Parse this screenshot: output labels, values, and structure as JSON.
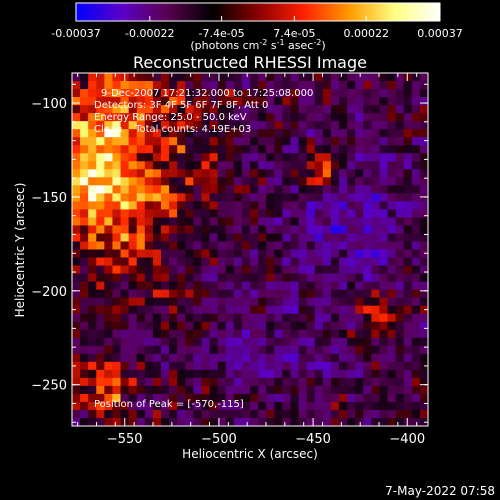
{
  "colorbar": {
    "ticks": [
      "-0.00037",
      "-0.00022",
      "-7.4e-05",
      "7.4e-05",
      "0.00022",
      "0.00037"
    ],
    "tick_values": [
      -0.00037,
      -0.00022,
      -7.4e-05,
      7.4e-05,
      0.00022,
      0.00037
    ],
    "range": [
      -0.00037,
      0.00037
    ],
    "units_main": "(photons cm",
    "units_sup1": "-2",
    "units_mid": " s",
    "units_sup2": "-1",
    "units_end": " asec",
    "units_sup3": "-2",
    "units_close": ")",
    "colors": [
      "#0000ff",
      "#5a00c8",
      "#5a0050",
      "#000000",
      "#8a0000",
      "#ff2000",
      "#ff9a00",
      "#ffff80",
      "#ffffff"
    ]
  },
  "title": "Reconstructed RHESSI Image",
  "annotations": {
    "time": "9-Dec-2007 17:21:32.000 to 17:25:08.000",
    "detectors": "Detectors: 3F 4F 5F 6F 7F 8F, Att 0",
    "energy": "Energy Range: 25.0 - 50.0 keV",
    "clean": "Clean    Total counts: 4.19E+03",
    "peak": "Position of Peak = [-570,-115]"
  },
  "chart_data": {
    "type": "heatmap",
    "title": "Reconstructed RHESSI Image",
    "xlabel": "Heliocentric X (arcsec)",
    "ylabel": "Heliocentric Y (arcsec)",
    "xlim": [
      -578,
      -389
    ],
    "ylim": [
      -272,
      -84
    ],
    "xticks": [
      -550,
      -500,
      -450,
      -400
    ],
    "yticks": [
      -100,
      -150,
      -200,
      -250
    ],
    "xtick_labels": [
      "−550",
      "−500",
      "−450",
      "−400"
    ],
    "ytick_labels": [
      "−100",
      "−150",
      "−200",
      "−250"
    ],
    "value_range": [
      -0.00037,
      0.00037
    ],
    "peak_position": [
      -570,
      -115
    ],
    "grid": false
  },
  "footer": {
    "date": "7-May-2022 07:58"
  }
}
